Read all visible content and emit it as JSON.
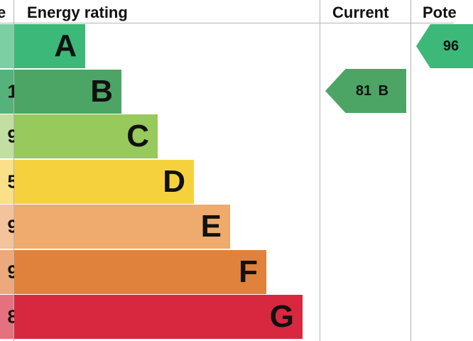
{
  "headers": {
    "score_fragment": "e",
    "energy_rating": "Energy rating",
    "current": "Current",
    "potential_fragment": "Pote"
  },
  "chart_data": {
    "type": "bar",
    "title": "Energy rating",
    "categories": [
      "A",
      "B",
      "C",
      "D",
      "E",
      "F",
      "G"
    ],
    "score_fragments": [
      "",
      "",
      "",
      "",
      "",
      "",
      ""
    ],
    "visible_score_digits": [
      "",
      "1",
      "9",
      "5",
      "9",
      "9",
      "8"
    ],
    "colors": [
      "#3cb878",
      "#4ca564",
      "#97c95c",
      "#f6d13e",
      "#efaa6d",
      "#e0823b",
      "#d7283f"
    ],
    "strip_colors": [
      "#7ccfa3",
      "#55b27a",
      "#c2dea0",
      "#f9e089",
      "#f3c39b",
      "#eca97c",
      "#e5717f"
    ],
    "current": {
      "value": 81,
      "band": "B",
      "label": "81 B",
      "color": "#4ca564"
    },
    "potential": {
      "value": 96,
      "band": "A",
      "label_visible": "96",
      "color": "#3cb878"
    }
  }
}
